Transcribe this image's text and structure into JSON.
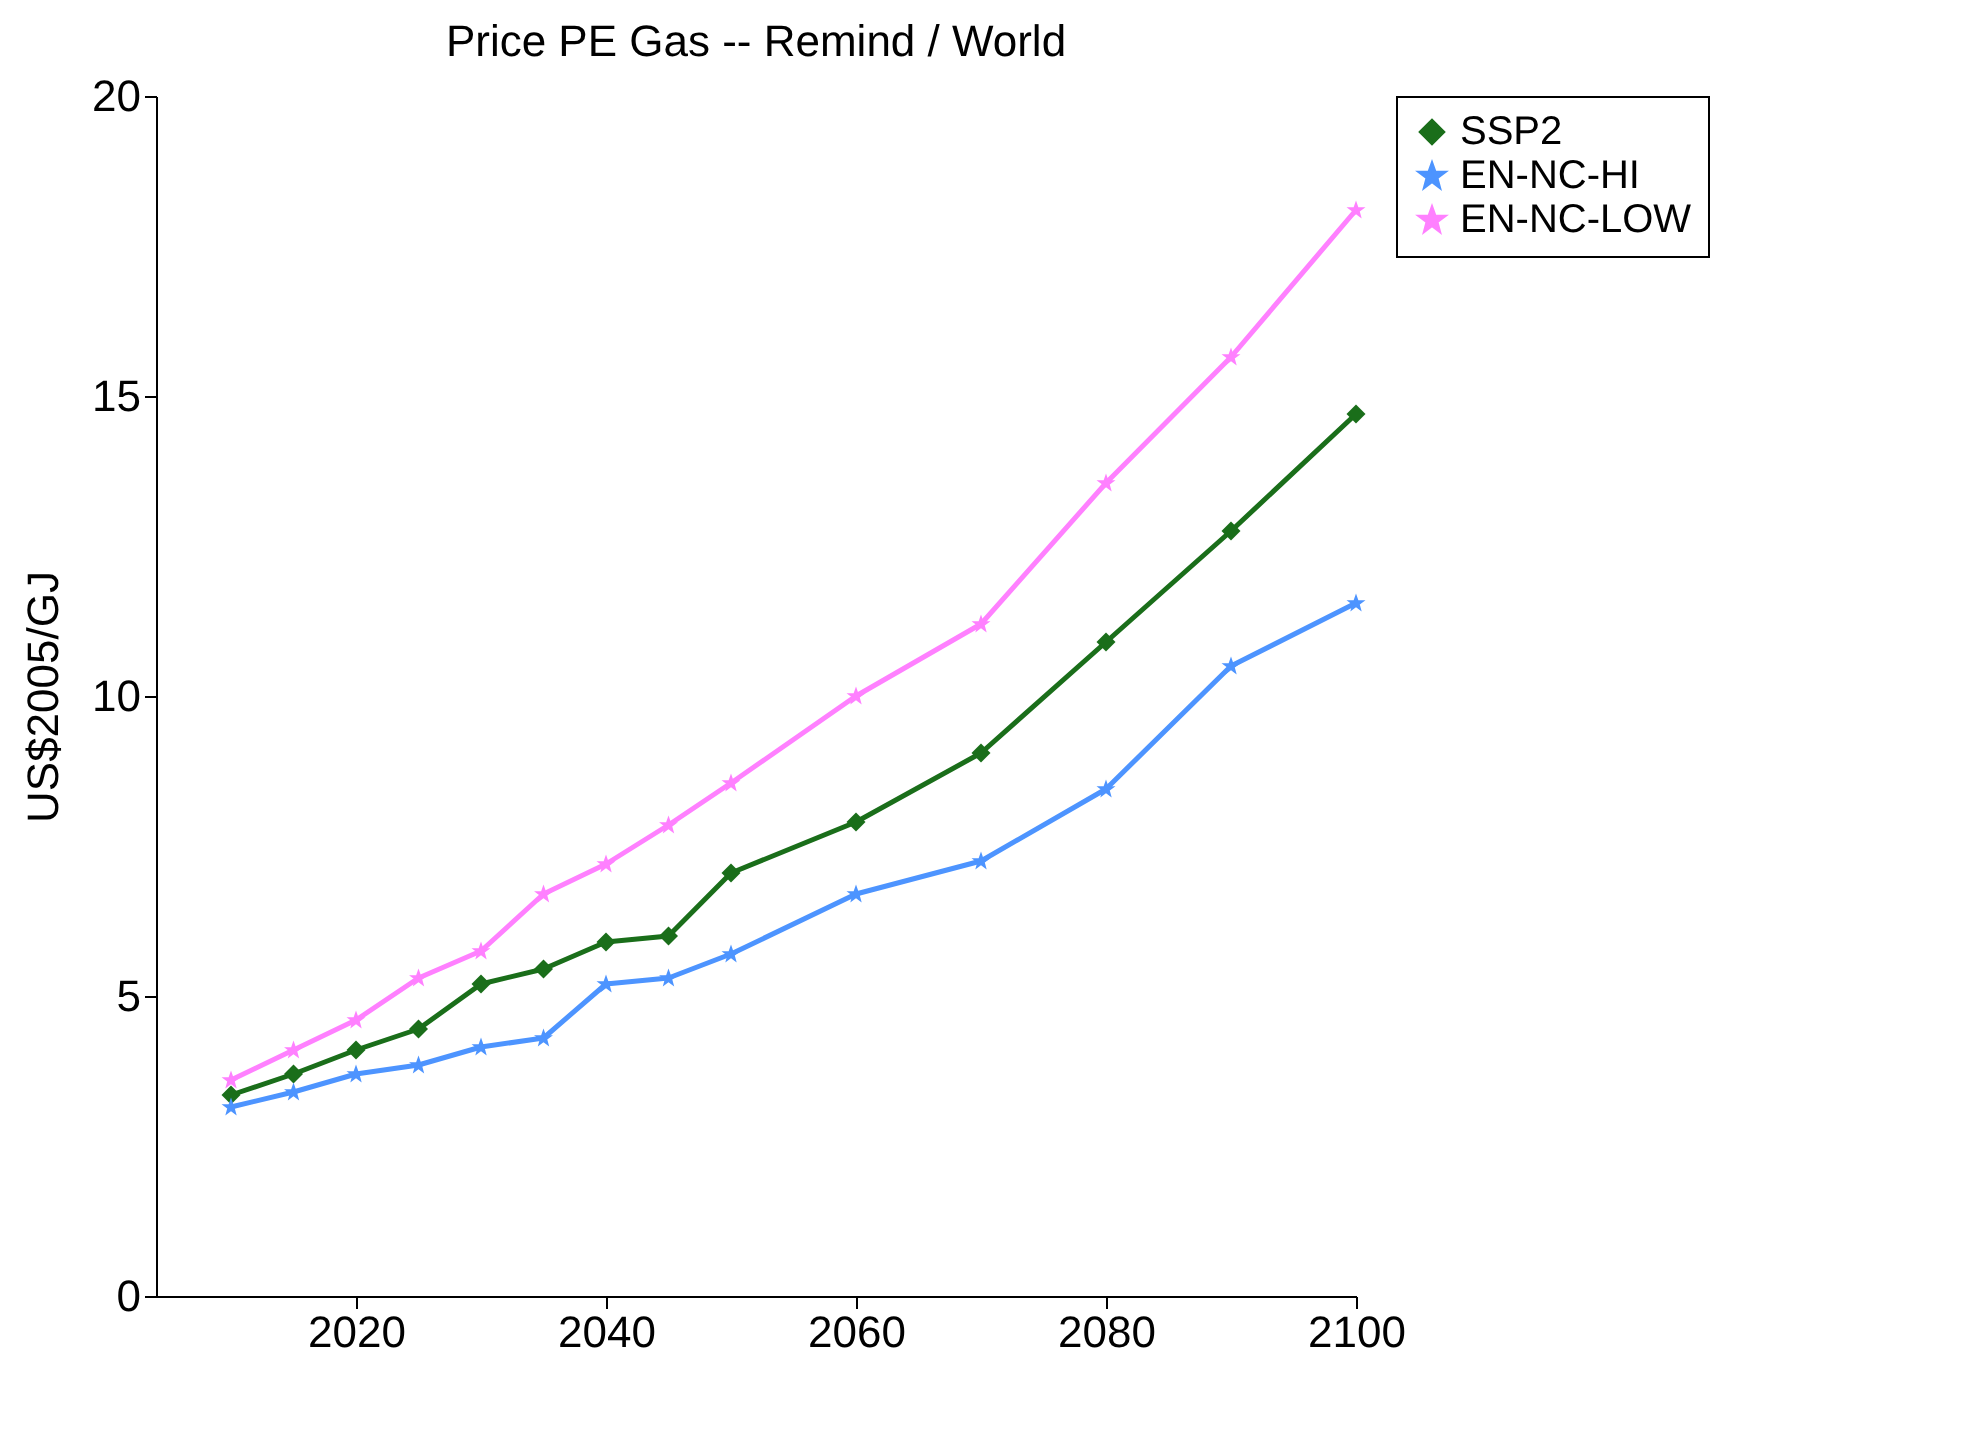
{
  "chart_data": {
    "type": "line",
    "title": "Price  PE Gas  -- Remind / World",
    "ylabel": "US$2005/GJ",
    "x": [
      2010,
      2015,
      2020,
      2025,
      2030,
      2035,
      2040,
      2045,
      2050,
      2060,
      2070,
      2080,
      2090,
      2100
    ],
    "series": [
      {
        "name": "SSP2",
        "color": "#1a6e1a",
        "marker": "diamond",
        "values": [
          3.35,
          3.7,
          4.1,
          4.45,
          5.2,
          5.45,
          5.9,
          6.0,
          7.05,
          7.9,
          9.05,
          10.9,
          12.75,
          14.7
        ]
      },
      {
        "name": "EN-NC-HI",
        "color": "#4d94ff",
        "marker": "star",
        "values": [
          3.15,
          3.4,
          3.7,
          3.85,
          4.15,
          4.3,
          5.2,
          5.3,
          5.7,
          6.7,
          7.25,
          8.45,
          10.5,
          11.55
        ]
      },
      {
        "name": "EN-NC-LOW",
        "color": "#ff80ff",
        "marker": "star",
        "values": [
          3.6,
          4.1,
          4.6,
          5.3,
          5.75,
          6.7,
          7.2,
          7.85,
          8.55,
          10.0,
          11.2,
          13.55,
          15.65,
          18.1
        ]
      }
    ],
    "xlim": [
      2004,
      2100
    ],
    "xticks": [
      2020,
      2040,
      2060,
      2080,
      2100
    ],
    "ylim": [
      0,
      20
    ],
    "yticks": [
      0,
      5,
      10,
      15,
      20
    ],
    "grid": false,
    "legend": "top right",
    "line_style": "solid"
  }
}
